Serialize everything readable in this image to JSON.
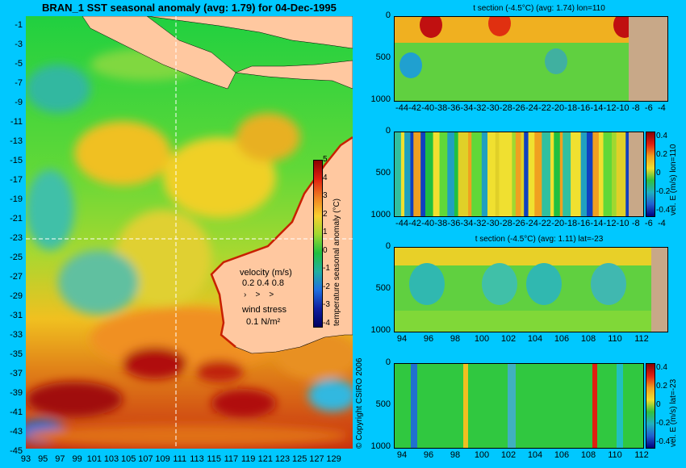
{
  "main_map": {
    "title": "BRAN_1  SST seasonal anomaly (avg: 1.79) for 04-Dec-1995",
    "lat_ticks": [
      "-1",
      "-3",
      "-5",
      "-7",
      "-9",
      "-11",
      "-13",
      "-15",
      "-17",
      "-19",
      "-21",
      "-23",
      "-25",
      "-27",
      "-29",
      "-31",
      "-33",
      "-35",
      "-37",
      "-39",
      "-41",
      "-43",
      "-45"
    ],
    "lon_ticks": [
      "93",
      "95",
      "97",
      "99",
      "101",
      "103",
      "105",
      "107",
      "109",
      "111",
      "113",
      "115",
      "117",
      "119",
      "121",
      "123",
      "125",
      "127",
      "129"
    ],
    "colorbar": {
      "label": "temperature seasonal anomaly (°C)",
      "ticks": [
        "5",
        "4",
        "3",
        "2",
        "1",
        "0",
        "-1",
        "-2",
        "-3",
        "-4"
      ]
    },
    "velocity_legend": {
      "title": "velocity (m/s)",
      "values": "0.2 0.4 0.8"
    },
    "wind_legend": {
      "title": "wind stress",
      "value": "0.1 N/m²"
    },
    "land_color": "#ffc8a0",
    "section_lines": {
      "lat": -23,
      "lon": 110
    }
  },
  "copyright": "© Copyright CSIRO 2006",
  "panels": [
    {
      "title": "t section (-4.5°C) (avg: 1.74) lon=110",
      "y_ticks": [
        "0",
        "500",
        "1000"
      ],
      "x_ticks": [
        "-44",
        "-42",
        "-40",
        "-38",
        "-36",
        "-34",
        "-32",
        "-30",
        "-28",
        "-26",
        "-24",
        "-22",
        "-20",
        "-18",
        "-16",
        "-14",
        "-12",
        "-10",
        "-8",
        "-6",
        "-4"
      ]
    },
    {
      "title": "",
      "y_ticks": [
        "0",
        "500",
        "1000"
      ],
      "x_ticks": [
        "-44",
        "-42",
        "-40",
        "-38",
        "-36",
        "-34",
        "-32",
        "-30",
        "-28",
        "-26",
        "-24",
        "-22",
        "-20",
        "-18",
        "-16",
        "-14",
        "-12",
        "-10",
        "-8",
        "-6",
        "-4"
      ],
      "colorbar_label": "vel. E (m/s) lon=110",
      "colorbar_ticks": [
        "0.4",
        "0.2",
        "0",
        "-0.2",
        "-0.4"
      ]
    },
    {
      "title": "t section (-4.5°C) (avg: 1.11) lat=-23",
      "y_ticks": [
        "0",
        "500",
        "1000"
      ],
      "x_ticks": [
        "94",
        "96",
        "98",
        "100",
        "102",
        "104",
        "106",
        "108",
        "110",
        "112"
      ]
    },
    {
      "title": "",
      "y_ticks": [
        "0",
        "500",
        "1000"
      ],
      "x_ticks": [
        "94",
        "96",
        "98",
        "100",
        "102",
        "104",
        "106",
        "108",
        "110",
        "112"
      ],
      "colorbar_label": "vel. E (m/s) lat=-23",
      "colorbar_ticks": [
        "0.4",
        "0.2",
        "0",
        "-0.2",
        "-0.4"
      ]
    }
  ]
}
